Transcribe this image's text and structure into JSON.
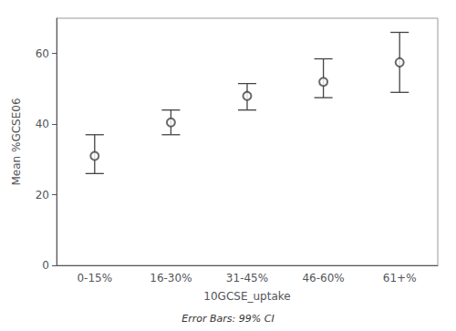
{
  "chart_data": {
    "type": "scatter",
    "categories": [
      "0-15%",
      "16-30%",
      "31-45%",
      "46-60%",
      "61+%"
    ],
    "values": [
      31.0,
      40.5,
      48.0,
      52.0,
      57.5
    ],
    "ci_lower": [
      26.0,
      37.0,
      44.0,
      47.5,
      49.0
    ],
    "ci_upper": [
      37.0,
      44.0,
      51.5,
      58.5,
      66.0
    ],
    "xlabel": "10GCSE_uptake",
    "ylabel": "Mean %GCSE06",
    "footnote": "Error Bars: 99% CI",
    "ylim": [
      0,
      70
    ],
    "yticks": [
      0,
      20,
      40,
      60
    ],
    "color": "#444444",
    "marker": "circle",
    "grid": false
  }
}
